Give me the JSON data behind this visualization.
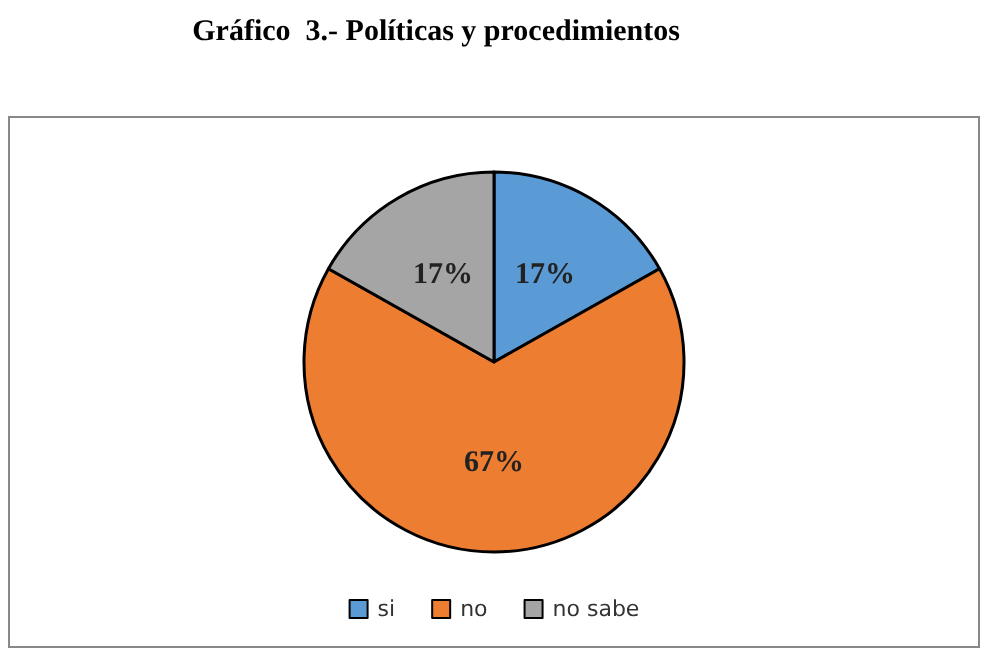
{
  "chart_data": {
    "type": "pie",
    "title": "Gráfico  3.- Políticas y procedimientos",
    "categories": [
      "si",
      "no",
      "no sabe"
    ],
    "values": [
      17,
      67,
      17
    ],
    "colors": [
      "#5b9bd5",
      "#ed7d31",
      "#a5a5a5"
    ],
    "value_labels": [
      "17%",
      "67%",
      "17%"
    ],
    "legend": "bottom"
  }
}
